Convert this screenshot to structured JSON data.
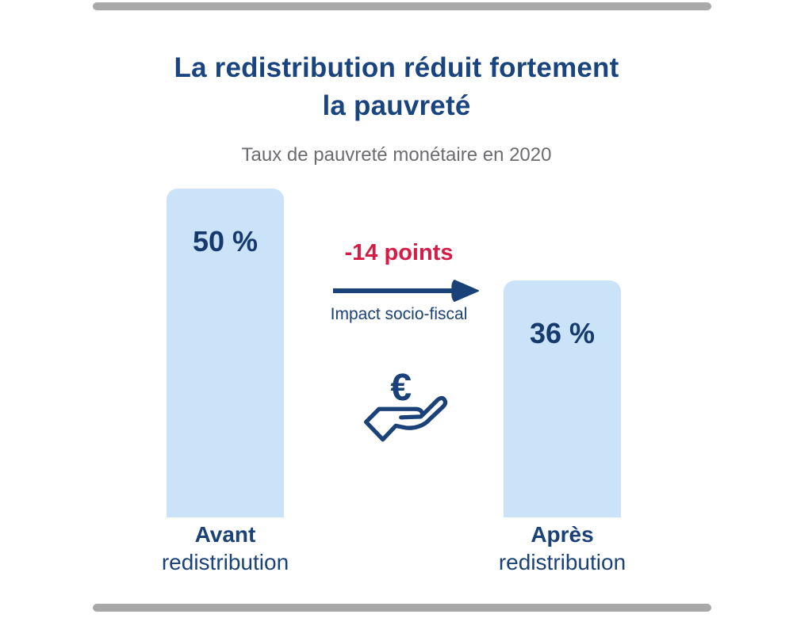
{
  "header": {
    "title_line1": "La redistribution réduit fortement",
    "title_line2": "la pauvreté",
    "subtitle": "Taux de pauvreté monétaire en 2020"
  },
  "chart_data": {
    "type": "bar",
    "title": "La redistribution réduit fortement la pauvreté",
    "subtitle": "Taux de pauvreté monétaire en 2020",
    "categories": [
      "Avant redistribution",
      "Après redistribution"
    ],
    "values": [
      50,
      36
    ],
    "unit": "%",
    "value_labels": [
      "50 %",
      "36 %"
    ],
    "ylim": [
      0,
      50
    ],
    "grid": false,
    "legend": "none",
    "annotation": {
      "delta_label": "-14 points",
      "arrow_direction": "left-to-right",
      "caption": "Impact socio-fiscal",
      "icon": "euro-hand-icon"
    }
  },
  "bars": [
    {
      "value_label": "50 %",
      "label_line1": "Avant",
      "label_line2": "redistribution"
    },
    {
      "value_label": "36 %",
      "label_line1": "Après",
      "label_line2": "redistribution"
    }
  ],
  "middle": {
    "delta_label": "-14 points",
    "caption": "Impact socio-fiscal",
    "euro_symbol": "€"
  },
  "colors": {
    "background": "#ffffff",
    "title_navy": "#1a4480",
    "text_navy": "#1a4178",
    "value_navy": "#163a6e",
    "accent_red": "#d41c46",
    "bar_fill": "#cbe3f8",
    "divider_gray": "#a8a8a8",
    "subtitle_gray": "#6b6c6f"
  }
}
